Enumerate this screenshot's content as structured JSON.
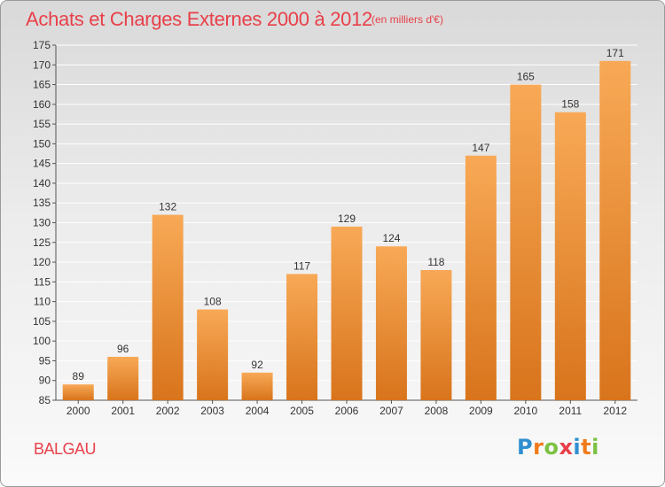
{
  "header": {
    "title": "Achats et Charges Externes 2000 à 2012",
    "unit": "(en milliers d'€)"
  },
  "footer": {
    "commune": "BALGAU",
    "logo": {
      "letters": [
        "P",
        "r",
        "o",
        "x",
        "i",
        "t",
        "i"
      ],
      "colors": [
        "#2f8fd0",
        "#f07a1a",
        "#7cc242",
        "#e8404a",
        "#2f8fd0",
        "#f07a1a",
        "#7cc242"
      ]
    }
  },
  "colors": {
    "title": "#e8404a",
    "bar_top": "#f8a956",
    "bar_bottom": "#d8741c",
    "grid": "#ffffff"
  },
  "chart_data": {
    "type": "bar",
    "title": "Achats et Charges Externes 2000 à 2012",
    "subtitle": "(en milliers d'€)",
    "categories": [
      "2000",
      "2001",
      "2002",
      "2003",
      "2004",
      "2005",
      "2006",
      "2007",
      "2008",
      "2009",
      "2010",
      "2011",
      "2012"
    ],
    "values": [
      89,
      96,
      132,
      108,
      92,
      117,
      129,
      124,
      118,
      147,
      165,
      158,
      171
    ],
    "ylim": [
      85,
      175
    ],
    "yticks": [
      85,
      90,
      95,
      100,
      105,
      110,
      115,
      120,
      125,
      130,
      135,
      140,
      145,
      150,
      155,
      160,
      165,
      170,
      175
    ],
    "grid": true,
    "xlabel": "",
    "ylabel": ""
  }
}
